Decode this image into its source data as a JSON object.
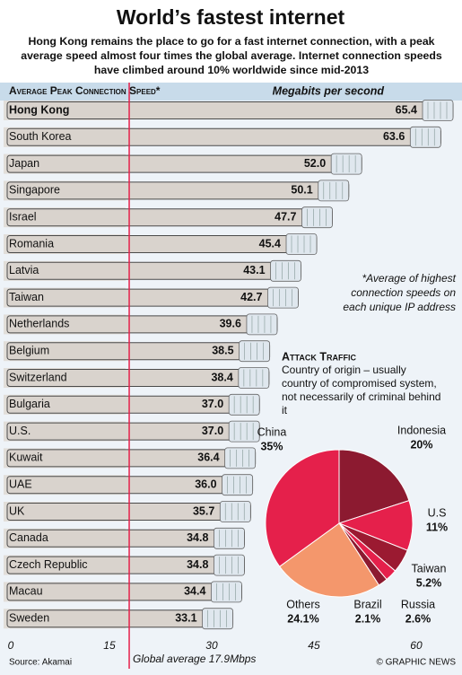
{
  "header": {
    "title": "World’s fastest internet",
    "subtitle": "Hong Kong remains the place to go for a fast internet connection, with a peak average speed almost four times the global average. Internet connection speeds have climbed around 10% worldwide since mid-2013"
  },
  "chart_data": [
    {
      "type": "barh",
      "title": "Average Peak Connection Speed*",
      "x_label": "Megabits per second",
      "categories": [
        "Hong Kong",
        "South Korea",
        "Japan",
        "Singapore",
        "Israel",
        "Romania",
        "Latvia",
        "Taiwan",
        "Netherlands",
        "Belgium",
        "Switzerland",
        "Bulgaria",
        "U.S.",
        "Kuwait",
        "UAE",
        "UK",
        "Canada",
        "Czech Republic",
        "Macau",
        "Sweden"
      ],
      "values": [
        65.4,
        63.6,
        52.0,
        50.1,
        47.7,
        45.4,
        43.1,
        42.7,
        39.6,
        38.5,
        38.4,
        37.0,
        37.0,
        36.4,
        36.0,
        35.7,
        34.8,
        34.8,
        34.4,
        33.1
      ],
      "value_labels": [
        "65.4",
        "63.6",
        "52.0",
        "50.1",
        "47.7",
        "45.4",
        "43.1",
        "42.7",
        "39.6",
        "38.5",
        "38.4",
        "37.0",
        "37.0",
        "36.4",
        "36.0",
        "35.7",
        "34.8",
        "34.8",
        "34.4",
        "33.1"
      ],
      "color": "#d9d3cd",
      "xlim": [
        0,
        65.4
      ],
      "xticks": [
        0,
        15,
        30,
        45,
        60
      ],
      "average_line": {
        "value": 17.9,
        "label": "Global average 17.9Mbps"
      },
      "footnote": "*Average of highest connection speeds on each unique IP address",
      "source": "Source: Akamai"
    },
    {
      "type": "pie",
      "title": "Attack Traffic",
      "subtitle": "Country of origin – usually country of compromised system, not necessarily of criminal behind it",
      "categories": [
        "Indonesia",
        "U.S",
        "Taiwan",
        "Russia",
        "Brazil",
        "Others",
        "China"
      ],
      "values": [
        20,
        11,
        5.2,
        2.6,
        2.1,
        24.1,
        35
      ],
      "value_labels": [
        "20%",
        "11%",
        "5.2%",
        "2.6%",
        "2.1%",
        "24.1%",
        "35%"
      ],
      "colors": [
        "#8c1a30",
        "#e5204b",
        "#9b1a31",
        "#e5204b",
        "#8c1a30",
        "#f4976c",
        "#e5204b"
      ]
    }
  ],
  "credit": "© GRAPHIC NEWS"
}
